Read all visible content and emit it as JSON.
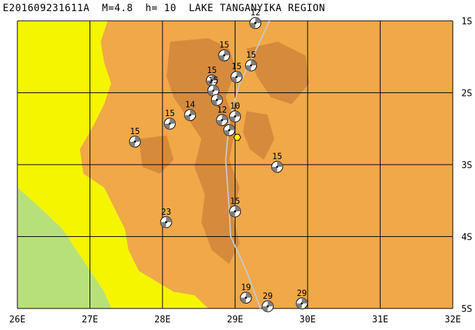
{
  "title": "E201609231611A  M=4.8  h= 10  LAKE TANGANYIKA REGION",
  "map": {
    "lon_range": [
      26,
      32
    ],
    "lat_range": [
      -5,
      -1
    ],
    "lon_ticks": [
      "26E",
      "27E",
      "28E",
      "29E",
      "30E",
      "31E",
      "32E"
    ],
    "lat_ticks": [
      "1S",
      "2S",
      "3S",
      "4S",
      "5S"
    ],
    "colors": {
      "lowland": "#f5f500",
      "plateau": "#f0a848",
      "highland": "#d68a3c",
      "lake": "#b8e07a",
      "grid": "#000000",
      "plate_boundary": "#c8c8c8",
      "event_marker": "#ffff00"
    }
  },
  "events": [
    {
      "lon": 29.28,
      "lat": -1.03,
      "depth": "12"
    },
    {
      "lon": 28.85,
      "lat": -1.48,
      "depth": "15"
    },
    {
      "lon": 29.22,
      "lat": -1.62,
      "depth": "15"
    },
    {
      "lon": 29.02,
      "lat": -1.78,
      "depth": "15"
    },
    {
      "lon": 28.68,
      "lat": -1.83,
      "depth": "15"
    },
    {
      "lon": 28.7,
      "lat": -1.97,
      "depth": "15"
    },
    {
      "lon": 28.75,
      "lat": -2.1,
      "depth": ""
    },
    {
      "lon": 28.38,
      "lat": -2.31,
      "depth": "14"
    },
    {
      "lon": 28.1,
      "lat": -2.43,
      "depth": "15"
    },
    {
      "lon": 29.0,
      "lat": -2.33,
      "depth": "10"
    },
    {
      "lon": 28.82,
      "lat": -2.38,
      "depth": "12"
    },
    {
      "lon": 28.92,
      "lat": -2.52,
      "depth": ""
    },
    {
      "lon": 27.62,
      "lat": -2.68,
      "depth": "15"
    },
    {
      "lon": 29.58,
      "lat": -3.03,
      "depth": "15"
    },
    {
      "lon": 29.0,
      "lat": -3.65,
      "depth": "15"
    },
    {
      "lon": 28.05,
      "lat": -3.8,
      "depth": "23"
    },
    {
      "lon": 29.15,
      "lat": -4.85,
      "depth": "19"
    },
    {
      "lon": 29.45,
      "lat": -4.97,
      "depth": "29"
    },
    {
      "lon": 29.92,
      "lat": -4.93,
      "depth": "29"
    }
  ],
  "main_event": {
    "lon": 29.03,
    "lat": -2.62
  }
}
